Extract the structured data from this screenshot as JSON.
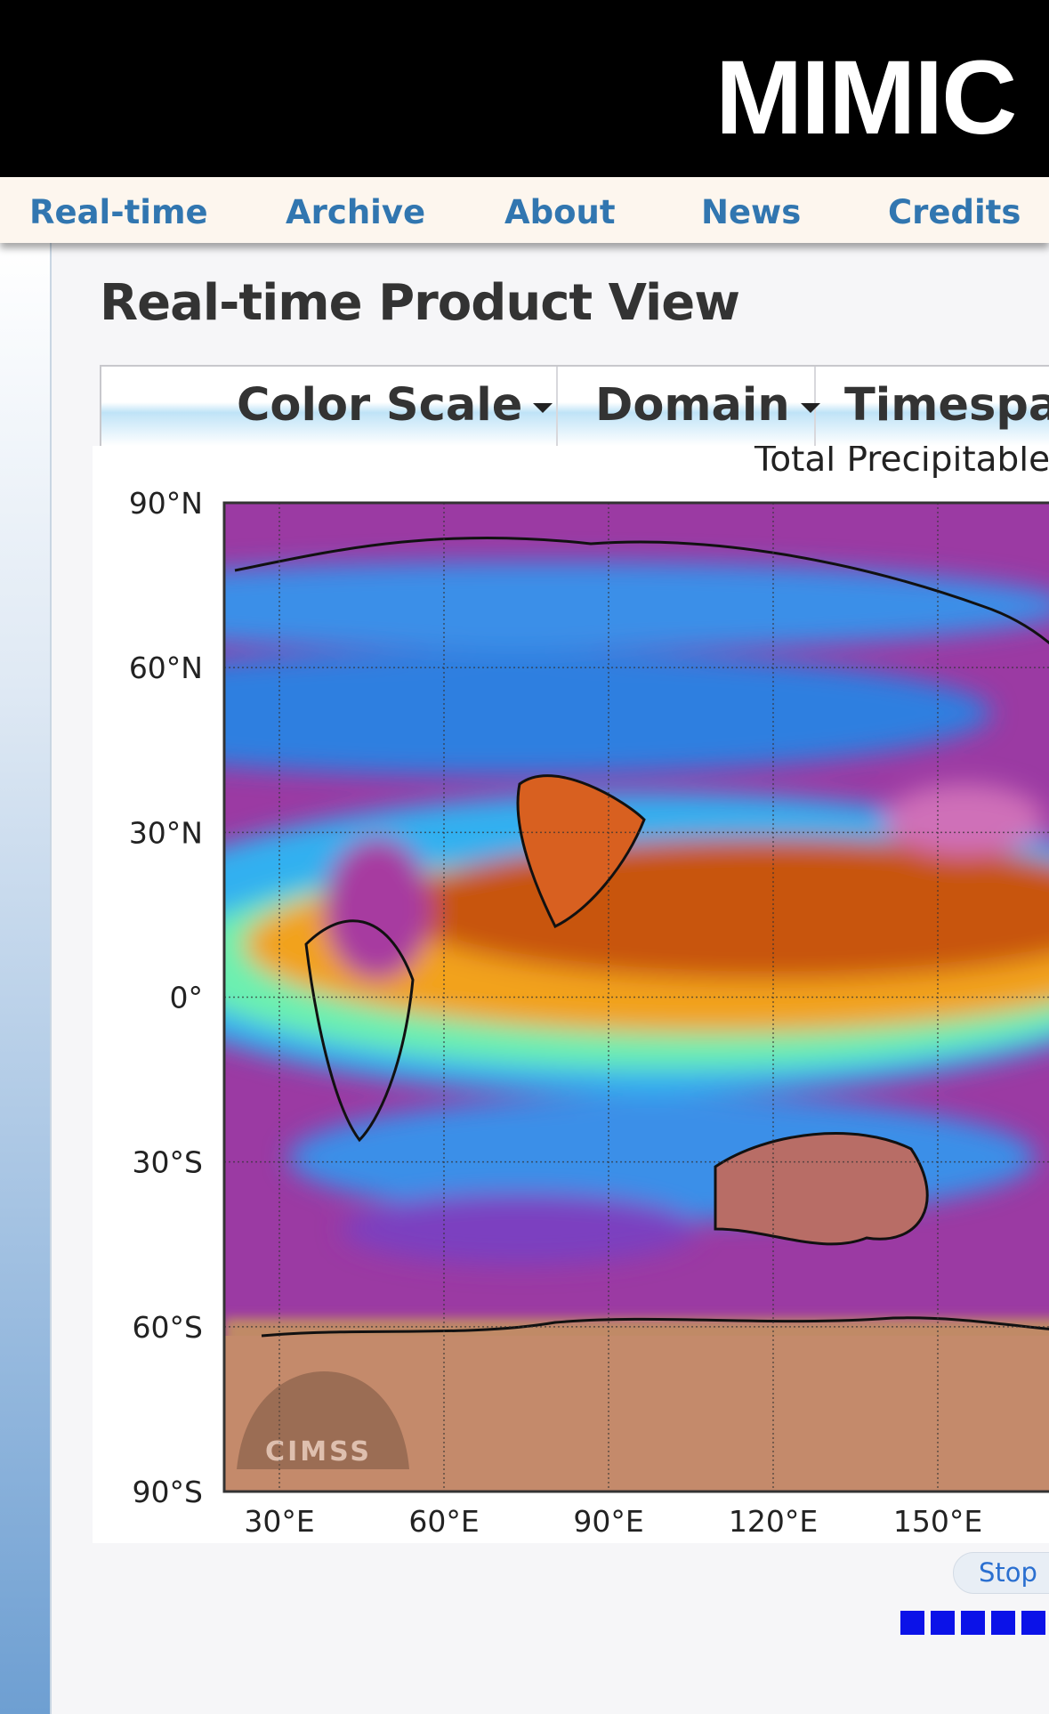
{
  "header": {
    "title": "MIMIC"
  },
  "nav": [
    "Real-time",
    "Archive",
    "About",
    "News",
    "Credits"
  ],
  "page": {
    "heading": "Real-time Product View"
  },
  "toolbar": [
    "Color Scale",
    "Domain",
    "Timespan"
  ],
  "map": {
    "title": "Total Precipitable Water",
    "y_labels": [
      "90°N",
      "60°N",
      "30°N",
      "0°",
      "30°S",
      "60°S",
      "90°S"
    ],
    "x_labels": [
      "30°E",
      "60°E",
      "90°E",
      "120°E",
      "150°E"
    ],
    "watermark": "CIMSS"
  },
  "controls": {
    "stop": "Stop"
  }
}
